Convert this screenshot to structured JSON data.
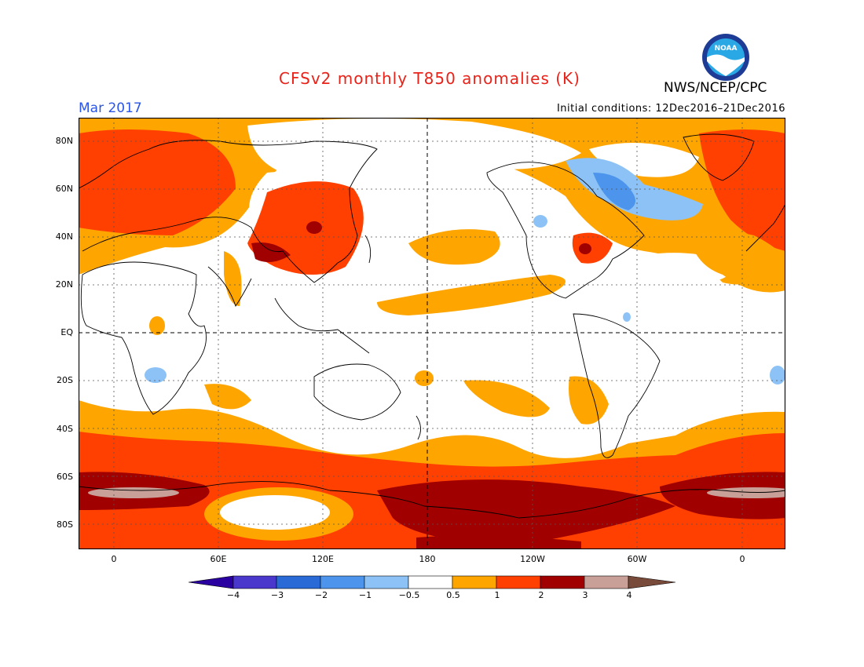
{
  "title": "CFSv2 monthly T850 anomalies (K)",
  "valid_month": "Mar 2017",
  "initial_conditions": "Initial conditions: 12Dec2016–21Dec2016",
  "agency": "NWS/NCEP/CPC",
  "logo_text": "NOAA",
  "lat_labels": [
    "80N",
    "60N",
    "40N",
    "20N",
    "EQ",
    "20S",
    "40S",
    "60S",
    "80S"
  ],
  "lon_labels": [
    "0",
    "60E",
    "120E",
    "180",
    "120W",
    "60W",
    "0"
  ],
  "colorbar": {
    "labels": [
      "−4",
      "−3",
      "−2",
      "−1",
      "−0.5",
      "0.5",
      "1",
      "2",
      "3",
      "4"
    ],
    "colors": [
      "#2a00a0",
      "#4a38cc",
      "#2a6ad6",
      "#4c94ec",
      "#8cc2f5",
      "#ffffff",
      "#ffa500",
      "#ff4000",
      "#a10000",
      "#c8a097",
      "#784a3a"
    ]
  },
  "palette": {
    "orange": "#ffa500",
    "red": "#ff4000",
    "darkred": "#a10000",
    "tan": "#c8a097",
    "lightblue": "#8cc2f5",
    "blue": "#4c94ec",
    "title_red": "#e8231a",
    "date_blue": "#2a55e6"
  }
}
